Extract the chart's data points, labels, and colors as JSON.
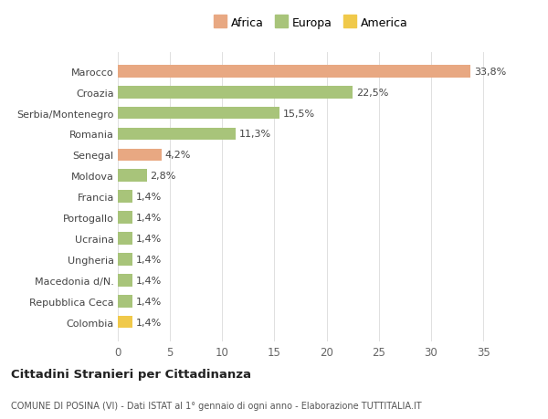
{
  "categories": [
    "Colombia",
    "Repubblica Ceca",
    "Macedonia d/N.",
    "Ungheria",
    "Ucraina",
    "Portogallo",
    "Francia",
    "Moldova",
    "Senegal",
    "Romania",
    "Serbia/Montenegro",
    "Croazia",
    "Marocco"
  ],
  "values": [
    1.4,
    1.4,
    1.4,
    1.4,
    1.4,
    1.4,
    1.4,
    2.8,
    4.2,
    11.3,
    15.5,
    22.5,
    33.8
  ],
  "colors": [
    "#f0c94a",
    "#a8c47a",
    "#a8c47a",
    "#a8c47a",
    "#a8c47a",
    "#a8c47a",
    "#a8c47a",
    "#a8c47a",
    "#e8a882",
    "#a8c47a",
    "#a8c47a",
    "#a8c47a",
    "#e8a882"
  ],
  "labels": [
    "1,4%",
    "1,4%",
    "1,4%",
    "1,4%",
    "1,4%",
    "1,4%",
    "1,4%",
    "2,8%",
    "4,2%",
    "11,3%",
    "15,5%",
    "22,5%",
    "33,8%"
  ],
  "legend": [
    {
      "label": "Africa",
      "color": "#e8a882"
    },
    {
      "label": "Europa",
      "color": "#a8c47a"
    },
    {
      "label": "America",
      "color": "#f0c94a"
    }
  ],
  "title1": "Cittadini Stranieri per Cittadinanza",
  "title2": "COMUNE DI POSINA (VI) - Dati ISTAT al 1° gennaio di ogni anno - Elaborazione TUTTITALIA.IT",
  "xlim": [
    0,
    37
  ],
  "xticks": [
    0,
    5,
    10,
    15,
    20,
    25,
    30,
    35
  ],
  "background_color": "#ffffff",
  "plot_background": "#ffffff",
  "grid_color": "#e0e0e0"
}
